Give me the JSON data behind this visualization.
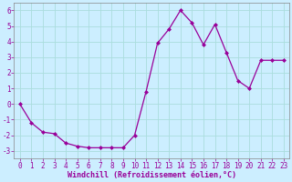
{
  "x": [
    0,
    1,
    2,
    3,
    4,
    5,
    6,
    7,
    8,
    9,
    10,
    11,
    12,
    13,
    14,
    15,
    16,
    17,
    18,
    19,
    20,
    21,
    22,
    23
  ],
  "y": [
    0.0,
    -1.2,
    -1.8,
    -1.9,
    -2.5,
    -2.7,
    -2.8,
    -2.8,
    -2.8,
    -2.8,
    -2.0,
    0.8,
    3.9,
    4.8,
    6.0,
    5.2,
    3.8,
    5.1,
    3.3,
    1.5,
    1.0,
    2.8,
    2.8,
    2.8
  ],
  "line_color": "#990099",
  "marker": "D",
  "markersize": 2.0,
  "linewidth": 0.9,
  "xlabel": "Windchill (Refroidissement éolien,°C)",
  "xlabel_fontsize": 6.0,
  "bg_color": "#cceeff",
  "grid_color": "#aadddd",
  "tick_label_fontsize": 5.5,
  "xlim": [
    -0.5,
    23.5
  ],
  "ylim": [
    -3.5,
    6.5
  ],
  "yticks": [
    -3,
    -2,
    -1,
    0,
    1,
    2,
    3,
    4,
    5,
    6
  ],
  "xticks": [
    0,
    1,
    2,
    3,
    4,
    5,
    6,
    7,
    8,
    9,
    10,
    11,
    12,
    13,
    14,
    15,
    16,
    17,
    18,
    19,
    20,
    21,
    22,
    23
  ]
}
